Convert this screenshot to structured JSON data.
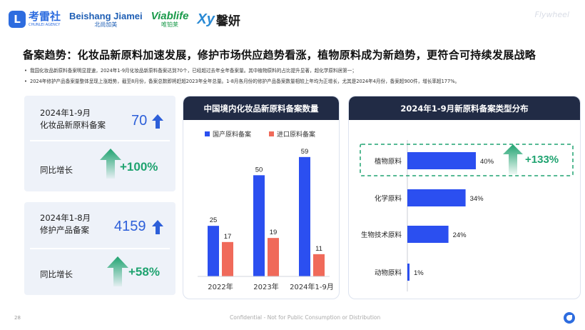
{
  "logos": {
    "leileishe": {
      "mark": "L",
      "cn": "考雷社",
      "en": "CHUNLEI AGENCY"
    },
    "beishang": {
      "en": "Beishang Jiamei",
      "cn": "北尚加美"
    },
    "viablife": {
      "en": "Viablife",
      "cn": "唯铂莱"
    },
    "xinyan": {
      "mark": "Xy",
      "cn": "馨妍"
    }
  },
  "watermark": "Flywheel",
  "title": "备案趋势：化妆品新原料加速发展，修护市场供应趋势看涨，植物原料成为新趋势，更符合可持续发展战略",
  "bullets": [
    "我国化妆品新原料备案明显提速，2024年1-9月化妆品新原料备案达到70个，已经超过去年全年备案量。其中植物原料的占比提升显著，超化学原料居第一；",
    "2024年修护产品备案量整体呈现上涨趋势，截至8月份，备案总数即将赶超2023年全年总量。1-8月各月份的修护产品备案数量相较上年均为正增长，尤其是2024年4月份，备案超900件，增长率超177%。"
  ],
  "cards": [
    {
      "label_line1": "2024年1-9月",
      "label_line2": "化妆品新原料备案",
      "value": "70",
      "growth_label": "同比增长",
      "growth": "+100%"
    },
    {
      "label_line1": "2024年1-8月",
      "label_line2": "修护产品备案",
      "value": "4159",
      "growth_label": "同比增长",
      "growth": "+58%"
    }
  ],
  "colors": {
    "domestic": "#2b4ff0",
    "imported": "#f06a5a",
    "hbar": "#2b4ff0",
    "growth": "#1fa370",
    "accent": "#2d5fd9"
  },
  "icons": [
    "arrow-up-icon",
    "growth-arrow-icon"
  ],
  "chart_data": [
    {
      "type": "bar",
      "title": "中国境内化妆品新原料备案数量",
      "categories": [
        "2022年",
        "2023年",
        "2024年1-9月"
      ],
      "series": [
        {
          "name": "国产原料备案",
          "values": [
            25,
            50,
            59
          ]
        },
        {
          "name": "进口原料备案",
          "values": [
            17,
            19,
            11
          ]
        }
      ],
      "ylim": [
        0,
        60
      ],
      "legend": "top",
      "grid": false
    },
    {
      "type": "bar",
      "orientation": "horizontal",
      "title": "2024年1-9月新原料备案类型分布",
      "categories": [
        "植物原料",
        "化学原料",
        "生物技术原料",
        "动物原料"
      ],
      "values": [
        40,
        34,
        24,
        1
      ],
      "value_labels": [
        "40%",
        "34%",
        "24%",
        "1%"
      ],
      "highlight": {
        "category": "植物原料",
        "annotation": "+133%"
      },
      "xlim": [
        0,
        100
      ],
      "grid": false
    }
  ]
}
